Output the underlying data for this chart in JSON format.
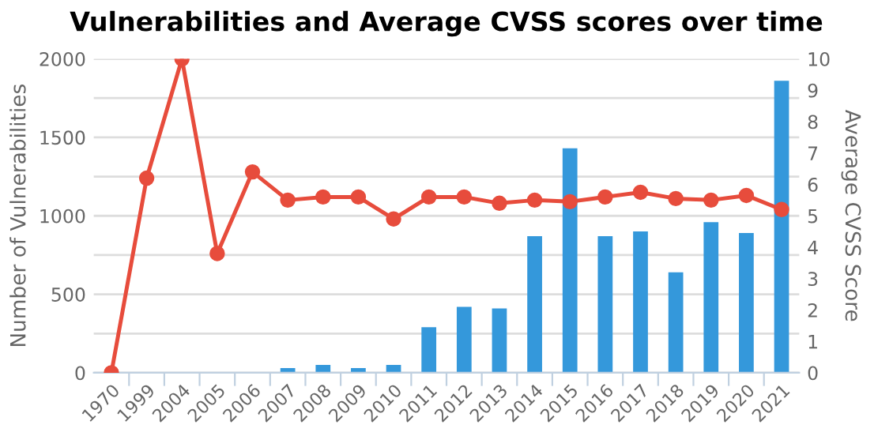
{
  "chart_data": {
    "type": "bar",
    "title": "Vulnerabilities and Average CVSS scores over time",
    "ylabel": "Number of Vulnerabilities",
    "y2label": "Average CVSS Score",
    "categories": [
      "1970",
      "1999",
      "2004",
      "2005",
      "2006",
      "2007",
      "2008",
      "2009",
      "2010",
      "2011",
      "2012",
      "2013",
      "2014",
      "2015",
      "2016",
      "2017",
      "2018",
      "2019",
      "2020",
      "2021"
    ],
    "series": [
      {
        "color": "#3498db",
        "values": [
          0,
          0,
          0,
          0,
          0,
          30,
          50,
          30,
          50,
          290,
          420,
          410,
          870,
          1430,
          870,
          900,
          640,
          960,
          890,
          1860
        ]
      },
      {
        "type": "line",
        "axis": "y2",
        "color": "#e74c3c",
        "marker": "circle",
        "line_style": "solid",
        "values": [
          0,
          6.2,
          10,
          3.8,
          6.4,
          5.5,
          5.6,
          5.6,
          4.9,
          5.6,
          5.6,
          5.4,
          5.5,
          5.45,
          5.6,
          5.75,
          5.55,
          5.5,
          5.65,
          5.2
        ]
      }
    ],
    "ylim": [
      0,
      2000
    ],
    "yticks": [
      0,
      {
        "value": 250,
        "label": null
      },
      500,
      {
        "value": 750,
        "label": null
      },
      1000,
      {
        "value": 1250,
        "label": null
      },
      1500,
      {
        "value": 1750,
        "label": null
      },
      2000
    ],
    "y2lim": [
      0,
      10
    ],
    "y2ticks": [
      0,
      1,
      2,
      3,
      4,
      5,
      6,
      7,
      8,
      9,
      10
    ],
    "grid": "y"
  }
}
